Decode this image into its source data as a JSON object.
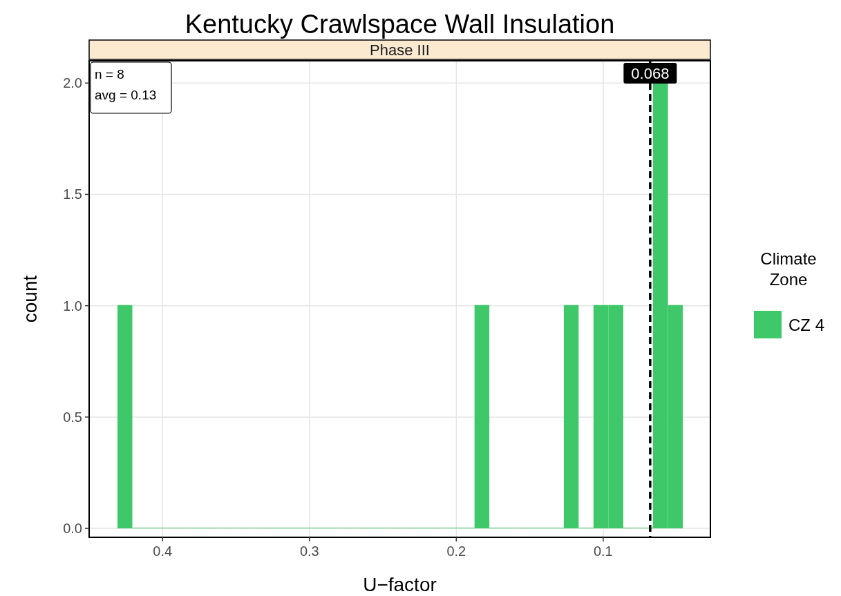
{
  "chart_data": {
    "type": "histogram",
    "title": "Kentucky Crawlspace Wall Insulation",
    "subtitle": "Phase III",
    "xlabel": "U−factor",
    "ylabel": "count",
    "legend_title": "Climate\nZone",
    "bins": [
      0.0458,
      0.0559,
      0.0661,
      0.0762,
      0.0863,
      0.0965,
      0.1066,
      0.1167,
      0.1268,
      0.137,
      0.1471,
      0.1572,
      0.1674,
      0.1775,
      0.1876,
      0.1978,
      0.2079,
      0.218,
      0.2281,
      0.2383,
      0.2484,
      0.2585,
      0.2687,
      0.2788,
      0.2889,
      0.2991,
      0.3092,
      0.3193,
      0.3295,
      0.3396,
      0.3497,
      0.3598,
      0.37,
      0.3801,
      0.3902,
      0.4004,
      0.4105,
      0.4206,
      0.4307
    ],
    "series": [
      {
        "name": "CZ 4",
        "color": "#3fc86a",
        "values": [
          1,
          2,
          0,
          0,
          1,
          1,
          0,
          1,
          0,
          0,
          0,
          0,
          0,
          1,
          0,
          0,
          0,
          0,
          0,
          0,
          0,
          0,
          0,
          0,
          0,
          0,
          0,
          0,
          0,
          0,
          0,
          0,
          0,
          0,
          0,
          0,
          0,
          1
        ]
      }
    ],
    "xlim": [
      0.45,
      0.027
    ],
    "xticks": [
      0.4,
      0.3,
      0.2,
      0.1
    ],
    "ylim": [
      -0.04,
      2.1
    ],
    "yticks": [
      {
        "value": 0,
        "label": "0.0"
      },
      {
        "value": 0.5,
        "label": "0.5"
      },
      {
        "value": 1,
        "label": "1.0"
      },
      {
        "value": 1.5,
        "label": "1.5"
      },
      {
        "value": 2,
        "label": "2.0"
      }
    ],
    "ref_lines": [
      {
        "axis": "x",
        "value": 0.068,
        "label": "0.068",
        "color": "#000000",
        "line_style": "dashed"
      }
    ],
    "annotations": [
      "n = 8\navg = 0.13"
    ],
    "grid": true,
    "legend": "right"
  }
}
